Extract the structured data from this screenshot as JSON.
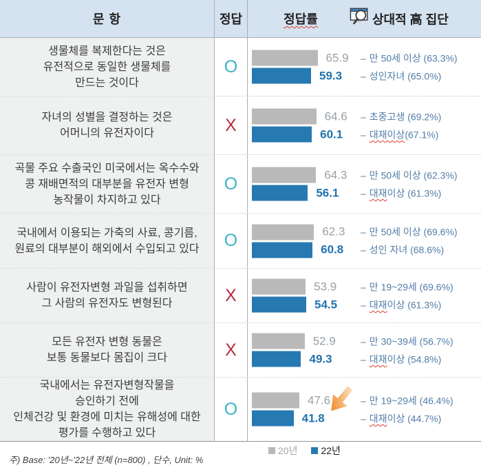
{
  "header": {
    "question": "문 항",
    "answer": "정답",
    "rate": "정답률",
    "group": "상대적 高 집단",
    "group_icon": "monitor-magnifier-icon"
  },
  "rows": [
    {
      "question_lines": [
        "생물체를 복제한다는 것은",
        "유전적으로 동일한 생물체를",
        "만드는 것이다"
      ],
      "answer": "O",
      "values": {
        "y2020": 65.9,
        "y2022": 59.3
      },
      "groups": [
        {
          "text": "만 50세 이상 (63.3%)"
        },
        {
          "text": "성인자녀 (65.0%)"
        }
      ]
    },
    {
      "question_lines": [
        "자녀의 성별을 결정하는 것은",
        "어머니의 유전자이다"
      ],
      "answer": "X",
      "values": {
        "y2020": 64.6,
        "y2022": 60.1
      },
      "groups": [
        {
          "text": "초중고생 (69.2%)"
        },
        {
          "text": "대재이상 (67.1%)",
          "wavy": "대재이상"
        }
      ]
    },
    {
      "question_lines": [
        "곡물 주요 수출국인 미국에서는 옥수수와",
        "콩 재배면적의 대부분을 유전자 변형",
        "농작물이 차지하고 있다"
      ],
      "answer": "O",
      "values": {
        "y2020": 64.3,
        "y2022": 56.1
      },
      "groups": [
        {
          "text": "만 50세 이상 (62.3%)"
        },
        {
          "text": "대재 이상 (61.3%)",
          "wavy": "대재"
        }
      ]
    },
    {
      "question_lines": [
        "국내에서 이용되는 가축의 사료, 콩기름,",
        "원료의 대부분이 해외에서 수입되고 있다"
      ],
      "answer": "O",
      "values": {
        "y2020": 62.3,
        "y2022": 60.8
      },
      "groups": [
        {
          "text": "만 50세 이상 (69.6%)"
        },
        {
          "text": "성인 자녀 (68.6%)"
        }
      ]
    },
    {
      "question_lines": [
        "사람이 유전자변형 과일을 섭취하면",
        "그 사람의 유전자도 변형된다"
      ],
      "answer": "X",
      "values": {
        "y2020": 53.9,
        "y2022": 54.5
      },
      "groups": [
        {
          "text": "만 19~29세 (69.6%)"
        },
        {
          "text": "대재 이상 (61.3%)",
          "wavy": "대재"
        }
      ]
    },
    {
      "question_lines": [
        "모든 유전자 변형 동물은",
        "보통 동물보다 몸집이 크다"
      ],
      "answer": "X",
      "values": {
        "y2020": 52.9,
        "y2022": 49.3
      },
      "groups": [
        {
          "text": "만 30~39세 (56.7%)"
        },
        {
          "text": "대재 이상 (54.8%)",
          "wavy": "대재"
        }
      ]
    },
    {
      "question_lines": [
        "국내에서는 유전자변형작물을",
        "승인하기 전에",
        "인체건강 및 환경에 미치는 유해성에 대한",
        "평가를 수행하고 있다"
      ],
      "answer": "O",
      "values": {
        "y2020": 47.6,
        "y2022": 41.8
      },
      "groups": [
        {
          "text": "만 19~29세 (46.4%)"
        },
        {
          "text": "대재 이상 (44.7%)",
          "wavy": "대재"
        }
      ],
      "arrow": "orange-down-arrow"
    }
  ],
  "legend": {
    "y2020": {
      "label": "20년",
      "color": "#b9b9b9"
    },
    "y2022": {
      "label": "22년",
      "color": "#2779b1"
    }
  },
  "footnote": "주) Base: '20년~'22년 전체 (n=800) , 단수, Unit: %",
  "colors": {
    "header_bg": "#d5e3f1",
    "question_bg": "#eff1f1",
    "answer_o": "#3ab4c8",
    "answer_x": "#b32e3e",
    "value_2020_text": "#9aa0a5",
    "value_2022_text": "#2273ae",
    "group_text": "#527da8",
    "arrow_gradient": [
      "#fbe3c0",
      "#ee8420"
    ]
  },
  "chart_data": {
    "type": "bar",
    "orientation": "horizontal",
    "unit": "%",
    "xlim": [
      0,
      100
    ],
    "legend_position": "bottom",
    "categories": [
      "생물체를 복제한다는 것은 유전적으로 동일한 생물체를 만드는 것이다",
      "자녀의 성별을 결정하는 것은 어머니의 유전자이다",
      "곡물 주요 수출국인 미국에서는 옥수수와 콩 재배면적의 대부분을 유전자 변형 농작물이 차지하고 있다",
      "국내에서 이용되는 가축의 사료, 콩기름, 원료의 대부분이 해외에서 수입되고 있다",
      "사람이 유전자변형 과일을 섭취하면 그 사람의 유전자도 변형된다",
      "모든 유전자 변형 동물은 보통 동물보다 몸집이 크다",
      "국내에서는 유전자변형작물을 승인하기 전에 인체건강 및 환경에 미치는 유해성에 대한 평가를 수행하고 있다"
    ],
    "correct_answers": [
      "O",
      "X",
      "O",
      "O",
      "X",
      "X",
      "O"
    ],
    "series": [
      {
        "name": "20년",
        "color": "#b9b9b9",
        "values": [
          65.9,
          64.6,
          64.3,
          62.3,
          53.9,
          52.9,
          47.6
        ]
      },
      {
        "name": "22년",
        "color": "#2779b1",
        "values": [
          59.3,
          60.1,
          56.1,
          60.8,
          54.5,
          49.3,
          41.8
        ]
      }
    ],
    "high_groups": [
      [
        "만 50세 이상 (63.3%)",
        "성인자녀 (65.0%)"
      ],
      [
        "초중고생 (69.2%)",
        "대재이상 (67.1%)"
      ],
      [
        "만 50세 이상 (62.3%)",
        "대재 이상 (61.3%)"
      ],
      [
        "만 50세 이상 (69.6%)",
        "성인 자녀 (68.6%)"
      ],
      [
        "만 19~29세 (69.6%)",
        "대재 이상 (61.3%)"
      ],
      [
        "만 30~39세 (56.7%)",
        "대재 이상 (54.8%)"
      ],
      [
        "만 19~29세 (46.4%)",
        "대재 이상 (44.7%)"
      ]
    ]
  }
}
